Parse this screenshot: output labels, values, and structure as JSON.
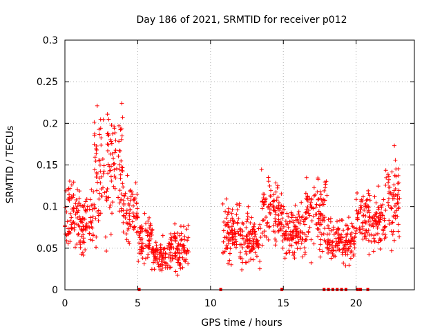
{
  "chart_data": {
    "type": "scatter",
    "title": "Day 186 of 2021, SRMTID for receiver p012",
    "xlabel": "GPS time / hours",
    "ylabel": "SRMTID / TECUs",
    "xlim": [
      0,
      24
    ],
    "ylim": [
      0,
      0.3
    ],
    "x_ticks": [
      0,
      5,
      10,
      15,
      20
    ],
    "x_tick_labels": [
      "0",
      "5",
      "10",
      "15",
      "20"
    ],
    "y_ticks": [
      0,
      0.05,
      0.1,
      0.15,
      0.2,
      0.25,
      0.3
    ],
    "y_tick_labels": [
      "0",
      "0.05",
      "0.1",
      "0.15",
      "0.2",
      "0.25",
      "0.3"
    ],
    "grid": true,
    "marker": "+",
    "color": "#ff0000",
    "segments": [
      {
        "x": [
          0.0,
          1.0
        ],
        "y": [
          0.09,
          0.12
        ]
      },
      {
        "x": [
          1.0,
          2.0
        ],
        "y": [
          0.08,
          0.11
        ]
      },
      {
        "x": [
          2.0,
          3.0
        ],
        "y": [
          0.14,
          0.22
        ]
      },
      {
        "x": [
          3.0,
          4.0
        ],
        "y": [
          0.15,
          0.19
        ]
      },
      {
        "x": [
          4.0,
          5.0
        ],
        "y": [
          0.09,
          0.11
        ]
      },
      {
        "x": [
          5.0,
          6.0
        ],
        "y": [
          0.06,
          0.07
        ]
      },
      {
        "x": [
          6.0,
          7.0
        ],
        "y": [
          0.04,
          0.06
        ]
      },
      {
        "x": [
          7.0,
          8.5
        ],
        "y": [
          0.05,
          0.07
        ]
      },
      {
        "x": [
          10.8,
          12.0
        ],
        "y": [
          0.07,
          0.09
        ]
      },
      {
        "x": [
          12.0,
          13.5
        ],
        "y": [
          0.06,
          0.08
        ]
      },
      {
        "x": [
          13.5,
          15.0
        ],
        "y": [
          0.09,
          0.12
        ]
      },
      {
        "x": [
          15.0,
          16.5
        ],
        "y": [
          0.07,
          0.08
        ]
      },
      {
        "x": [
          16.5,
          18.0
        ],
        "y": [
          0.09,
          0.13
        ]
      },
      {
        "x": [
          18.0,
          20.0
        ],
        "y": [
          0.06,
          0.07
        ]
      },
      {
        "x": [
          20.0,
          21.0
        ],
        "y": [
          0.09,
          0.11
        ]
      },
      {
        "x": [
          21.0,
          22.0
        ],
        "y": [
          0.08,
          0.1
        ]
      },
      {
        "x": [
          22.0,
          23.0
        ],
        "y": [
          0.11,
          0.14
        ]
      }
    ],
    "zero_markers_x": [
      5.1,
      10.7,
      14.9,
      17.8,
      18.1,
      18.4,
      18.7,
      19.0,
      19.3,
      20.1,
      20.3,
      20.8
    ]
  }
}
